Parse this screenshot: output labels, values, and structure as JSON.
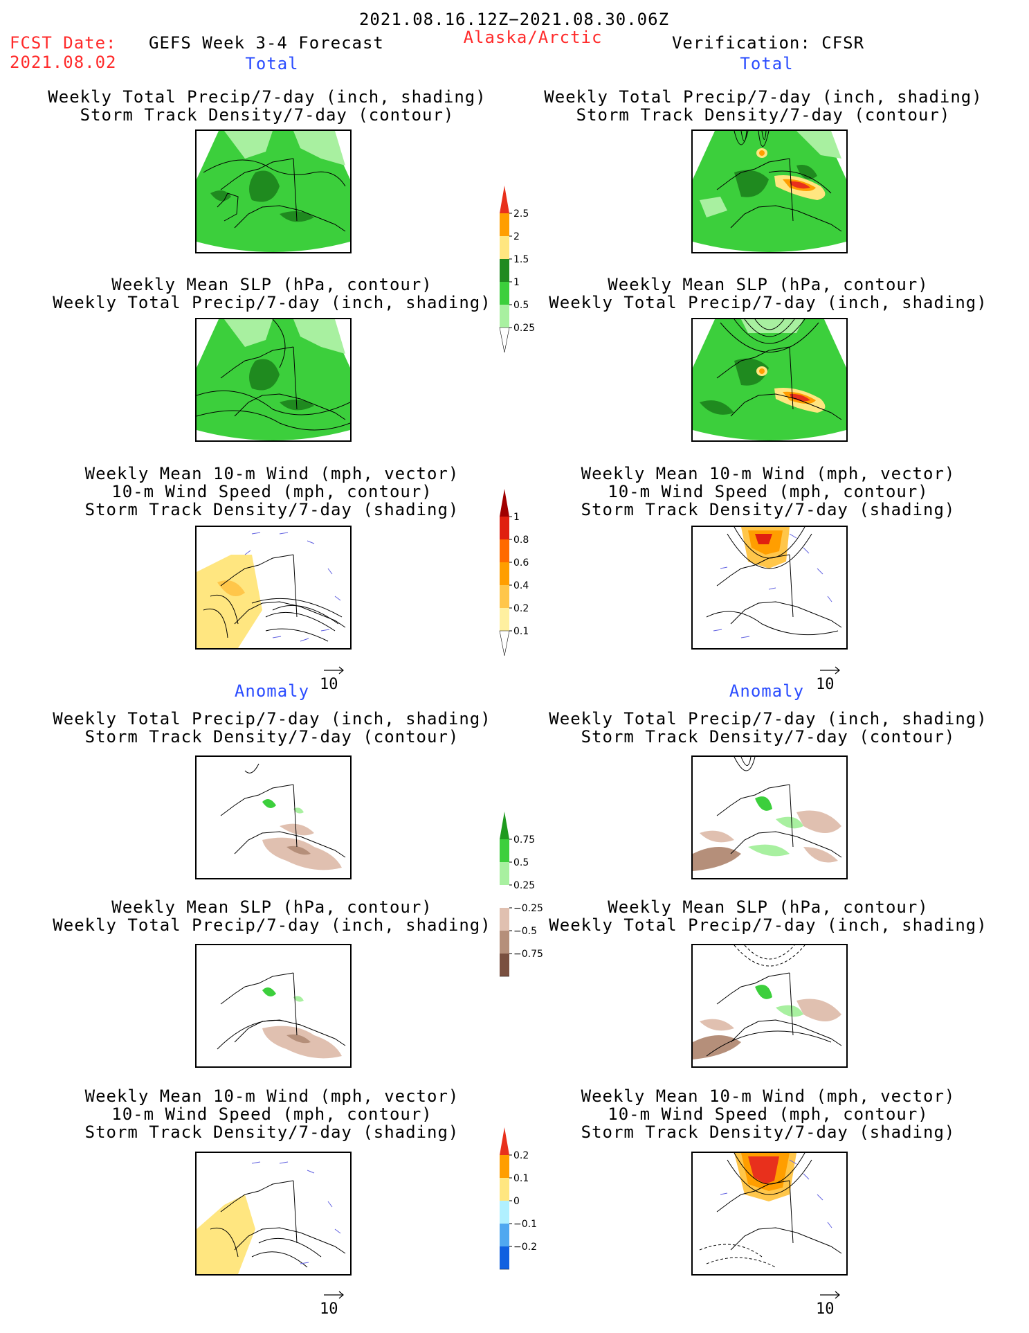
{
  "header": {
    "date_range": "2021.08.16.12Z−2021.08.30.06Z",
    "fcst_label": "FCST Date:",
    "fcst_date": "2021.08.02",
    "product": "GEFS Week 3-4 Forecast",
    "region": "Alaska/Arctic",
    "verification": "Verification: CFSR"
  },
  "sections": {
    "total_left": "Total",
    "total_right": "Total",
    "anomaly_left": "Anomaly",
    "anomaly_right": "Anomaly"
  },
  "titles": {
    "precip_track": "Weekly Total Precip/7-day (inch, shading)\nStorm Track Density/7-day (contour)",
    "slp_precip": "Weekly Mean SLP (hPa, contour)\nWeekly Total Precip/7-day (inch, shading)",
    "wind": "Weekly Mean 10-m Wind (mph, vector)\n10-m Wind Speed (mph, contour)\nStorm Track Density/7-day (shading)"
  },
  "vector_ref": "10",
  "colorbars": {
    "precip_total": {
      "labels": [
        "2.5",
        "2",
        "1.5",
        "1",
        "0.5",
        "0.25"
      ],
      "colors": [
        "#e8301c",
        "#ff9e00",
        "#ffe680",
        "#1f8a1f",
        "#3ccf3c",
        "#a8f0a0"
      ]
    },
    "track_total": {
      "labels": [
        "1",
        "0.8",
        "0.6",
        "0.4",
        "0.2",
        "0.1"
      ],
      "colors": [
        "#a00000",
        "#e02010",
        "#ff6a00",
        "#ff9e00",
        "#ffc64a",
        "#fff0a0"
      ]
    },
    "precip_anom": {
      "labels": [
        "0.75",
        "0.5",
        "0.25",
        "−0.25",
        "−0.5",
        "−0.75"
      ],
      "colors": [
        "#1f9a1f",
        "#3ccf3c",
        "#a8f0a0",
        "#ffffff",
        "#e0c0b0",
        "#b58f7a",
        "#7a5040"
      ]
    },
    "track_anom": {
      "labels": [
        "0.2",
        "0.1",
        "0",
        "−0.1",
        "−0.2"
      ],
      "colors": [
        "#e8301c",
        "#ff9e00",
        "#ffe680",
        "#b0f0ff",
        "#50a8f0",
        "#1060e0"
      ]
    }
  }
}
